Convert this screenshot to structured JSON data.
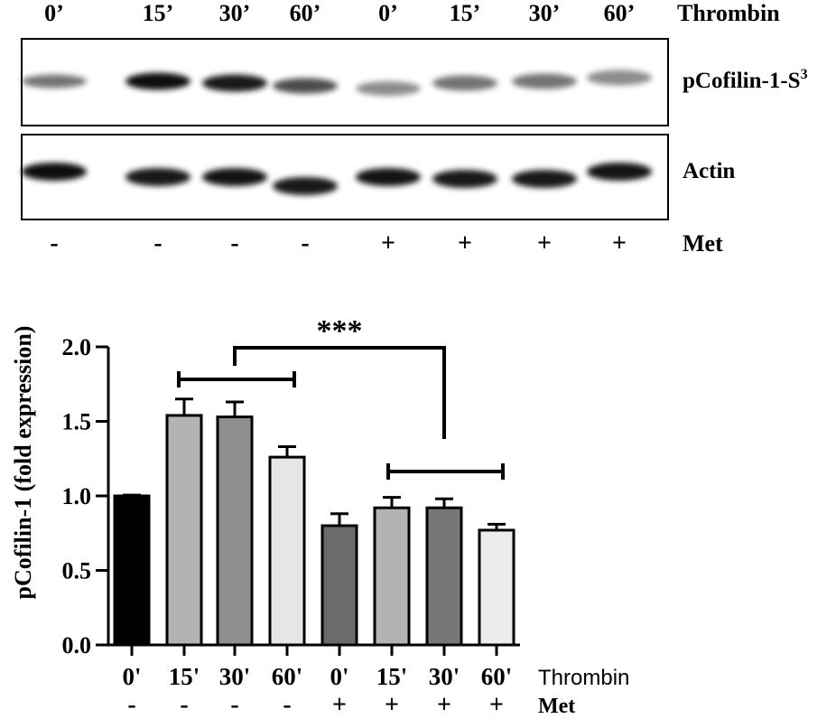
{
  "blot": {
    "lane_labels": [
      "0’",
      "15’",
      "30’",
      "60’",
      "0’",
      "15’",
      "30’",
      "60’"
    ],
    "treatment_label": "Thrombin",
    "met_signs": [
      "-",
      "-",
      "-",
      "-",
      "+",
      "+",
      "+",
      "+"
    ],
    "met_label": "Met",
    "panels": [
      {
        "label": "pCofilin-1-S",
        "superscript": "3",
        "band_intensity": [
          0.55,
          0.95,
          0.9,
          0.7,
          0.45,
          0.55,
          0.55,
          0.45
        ]
      },
      {
        "label": "Actin",
        "band_intensity": [
          0.95,
          0.9,
          0.92,
          0.9,
          0.92,
          0.9,
          0.9,
          0.92
        ]
      }
    ],
    "colors": {
      "band": "#000000",
      "frame": "#000000"
    }
  },
  "chart_data": {
    "type": "bar",
    "categories": [
      "0'",
      "15'",
      "30'",
      "60'",
      "0'",
      "15'",
      "30'",
      "60'"
    ],
    "values": [
      1.0,
      1.54,
      1.53,
      1.26,
      0.8,
      0.92,
      0.92,
      0.77
    ],
    "errors": [
      0.005,
      0.11,
      0.1,
      0.07,
      0.08,
      0.07,
      0.06,
      0.04
    ],
    "bar_colors": [
      "#000000",
      "#b3b3b3",
      "#8f8f8f",
      "#e6e6e6",
      "#6b6b6b",
      "#b3b3b3",
      "#777777",
      "#ececec"
    ],
    "ylabel": "pCofilin-1 (fold expression)",
    "ylim": [
      0,
      2.0
    ],
    "yticks": [
      "0.0",
      "0.5",
      "1.0",
      "1.5",
      "2.0"
    ],
    "treatment_label": "Thrombin",
    "met_signs": [
      "-",
      "-",
      "-",
      "-",
      "+",
      "+",
      "+",
      "+"
    ],
    "met_label": "Met",
    "significance": "***",
    "grid": false
  }
}
